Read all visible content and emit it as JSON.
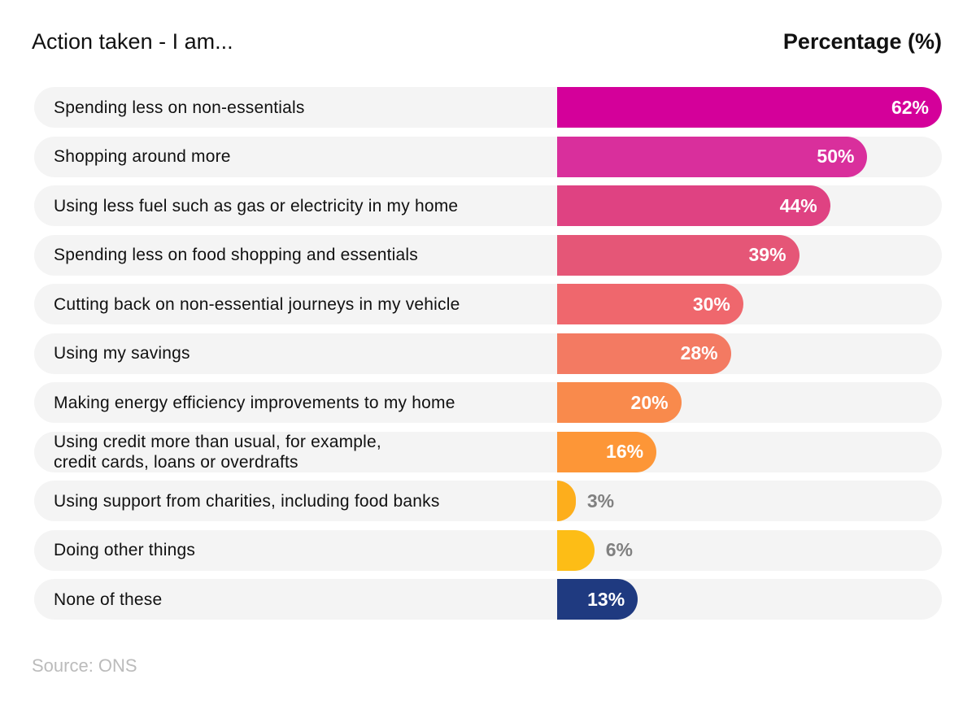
{
  "header": {
    "left_title": "Action taken - I am...",
    "right_title": "Percentage (%)"
  },
  "source": "Source: ONS",
  "chart_data": {
    "type": "bar",
    "orientation": "horizontal",
    "title": "",
    "xlabel": "Percentage (%)",
    "ylabel": "Action taken - I am...",
    "xlim": [
      0,
      62
    ],
    "grid": false,
    "categories": [
      "Spending less on non-essentials",
      "Shopping around more",
      "Using less fuel such as gas or electricity in my home",
      "Spending less on food shopping and essentials",
      "Cutting back on non-essential journeys in my vehicle",
      "Using my savings",
      "Making energy efficiency improvements to my home",
      "Using credit more than usual, for example,\ncredit cards, loans or overdrafts",
      "Using support from charities, including food banks",
      "Doing other things",
      "None of these"
    ],
    "values": [
      62,
      50,
      44,
      39,
      30,
      28,
      20,
      16,
      3,
      6,
      13
    ],
    "value_labels": [
      "62%",
      "50%",
      "44%",
      "39%",
      "30%",
      "28%",
      "20%",
      "16%",
      "3%",
      "6%",
      "13%"
    ],
    "colors": [
      "#d4009a",
      "#d92f9c",
      "#df4282",
      "#e55677",
      "#ef676d",
      "#f37a62",
      "#f98a4c",
      "#fd9637",
      "#fdae1c",
      "#fdbd16",
      "#1f3a80"
    ],
    "label_inside": [
      true,
      true,
      true,
      true,
      true,
      true,
      true,
      true,
      false,
      false,
      true
    ],
    "source": "Source: ONS"
  }
}
